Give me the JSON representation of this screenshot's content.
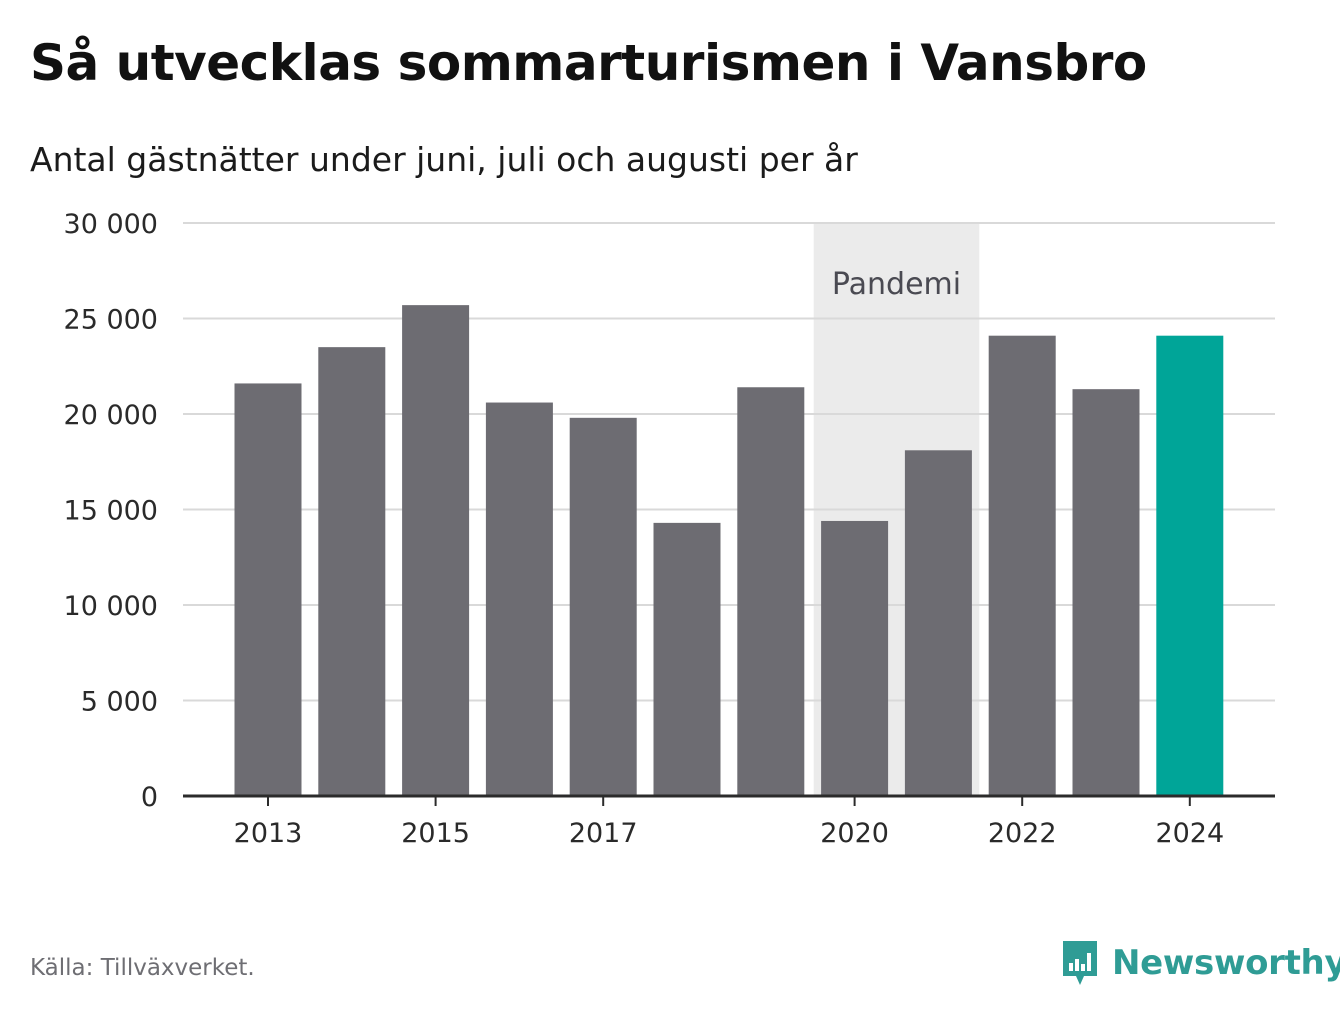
{
  "header": {
    "title": "Så utvecklas sommarturismen i Vansbro",
    "subtitle": "Antal gästnätter under juni, juli och augusti per år"
  },
  "footer": {
    "source": "Källa: Tillväxverket.",
    "brand": "Newsworthy"
  },
  "colors": {
    "bar": "#6d6c72",
    "highlight": "#00a598",
    "band": "#ebebeb",
    "grid": "#d9d9d9",
    "axis": "#2b2b2b",
    "brand": "#2f9c95"
  },
  "chart_data": {
    "type": "bar",
    "categories": [
      2013,
      2014,
      2015,
      2016,
      2017,
      2018,
      2019,
      2020,
      2021,
      2022,
      2023,
      2024
    ],
    "values": [
      21600,
      23500,
      25700,
      20600,
      19800,
      14300,
      21400,
      14400,
      18100,
      24100,
      21300,
      24100
    ],
    "highlight_category": 2024,
    "x_tick_labels": [
      "2013",
      "2015",
      "2017",
      "2020",
      "2022",
      "2024"
    ],
    "y_ticks": [
      0,
      5000,
      10000,
      15000,
      20000,
      25000,
      30000
    ],
    "y_tick_labels": [
      "0",
      "5 000",
      "10 000",
      "15 000",
      "20 000",
      "25 000",
      "30 000"
    ],
    "ylim": [
      0,
      30000
    ],
    "grid": true,
    "annotation": {
      "label": "Pandemi",
      "from": 2020,
      "to": 2021
    }
  }
}
